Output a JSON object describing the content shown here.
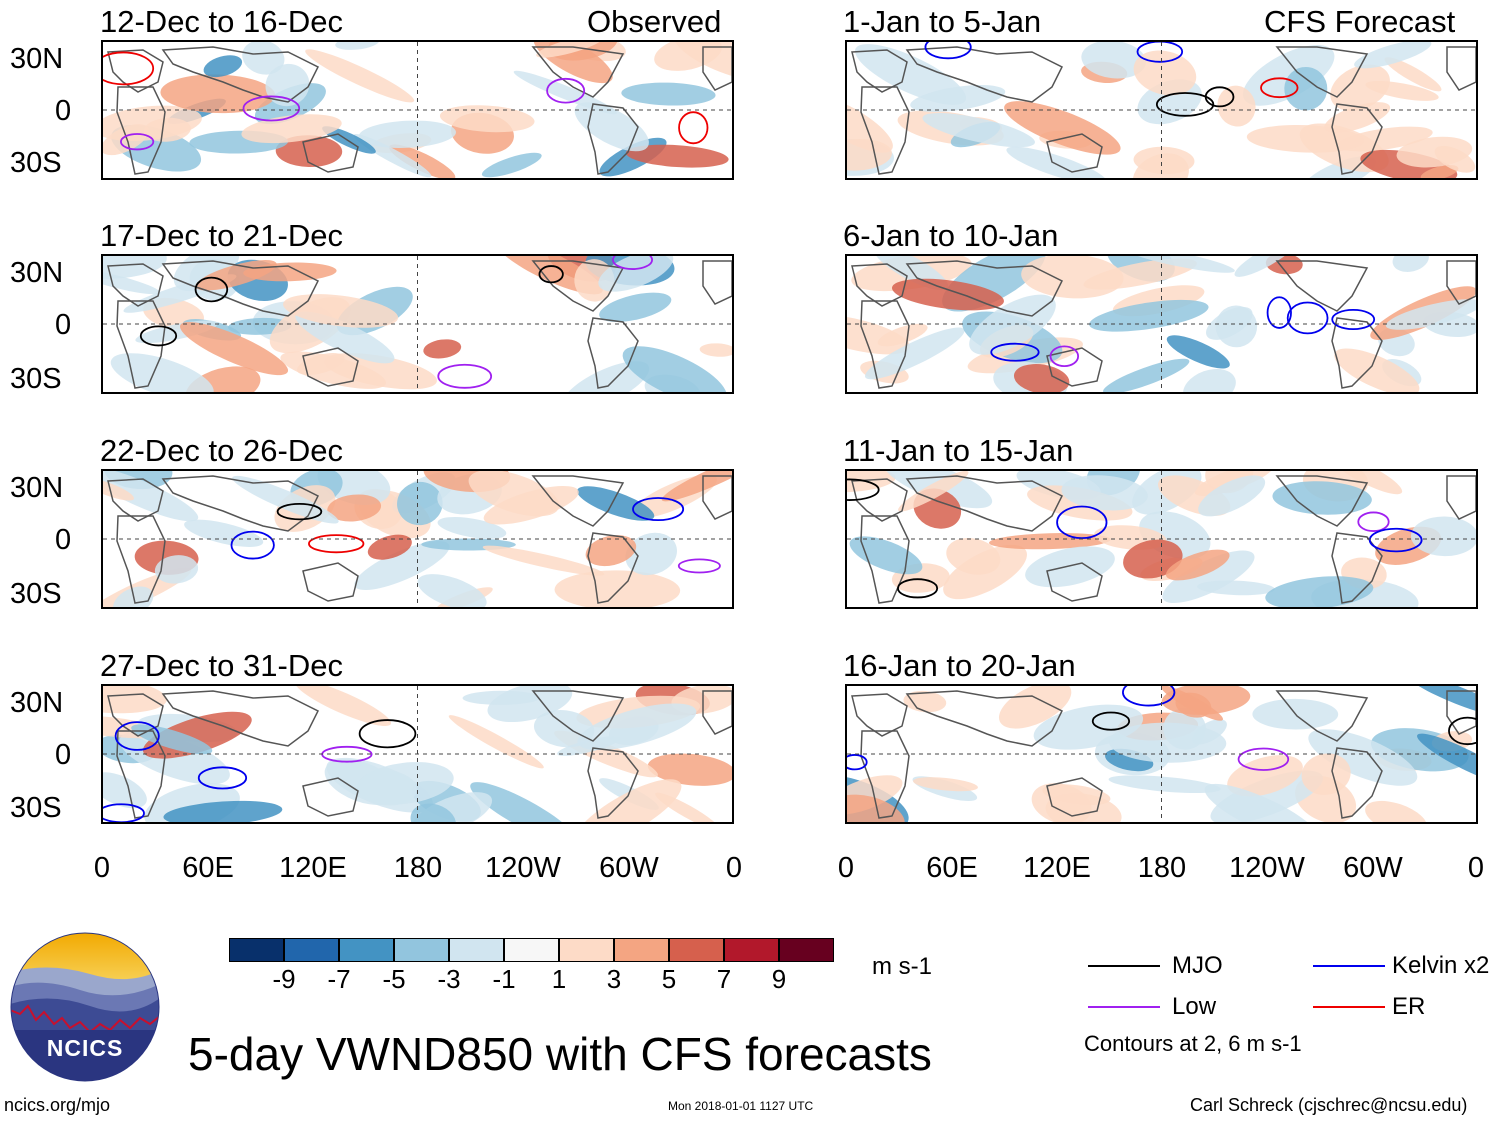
{
  "left_column": {
    "header_right": "Observed",
    "panels": [
      {
        "title": "12-Dec to 16-Dec"
      },
      {
        "title": "17-Dec to 21-Dec"
      },
      {
        "title": "22-Dec to 26-Dec"
      },
      {
        "title": "27-Dec to 31-Dec"
      }
    ]
  },
  "right_column": {
    "header_right": "CFS Forecast",
    "panels": [
      {
        "title": "1-Jan to 5-Jan"
      },
      {
        "title": "6-Jan to 10-Jan"
      },
      {
        "title": "11-Jan to 15-Jan"
      },
      {
        "title": "16-Jan to 20-Jan"
      }
    ]
  },
  "lat_labels": [
    "30N",
    "0",
    "30S"
  ],
  "lon_labels": [
    "0",
    "60E",
    "120E",
    "180",
    "120W",
    "60W",
    "0"
  ],
  "colorbar": {
    "colors": [
      "#08306b",
      "#2166ac",
      "#4393c3",
      "#92c5de",
      "#d1e5f0",
      "#f7f7f7",
      "#fddbc7",
      "#f4a582",
      "#d6604d",
      "#b2182b",
      "#67001f"
    ],
    "labels": [
      "-9",
      "-7",
      "-5",
      "-3",
      "-1",
      "1",
      "3",
      "5",
      "7",
      "9"
    ],
    "units": "m s-1"
  },
  "legend": {
    "items": [
      {
        "label": "MJO",
        "color": "#000000"
      },
      {
        "label": "Kelvin x2",
        "color": "#0000ee"
      },
      {
        "label": "Low",
        "color": "#a020f0"
      },
      {
        "label": "ER",
        "color": "#ee0000"
      }
    ],
    "note": "Contours at 2, 6 m s-1"
  },
  "logo": {
    "text": "NCICS"
  },
  "main_title": "5-day VWND850 with CFS forecasts",
  "footer": {
    "left": "ncics.org/mjo",
    "center": "Mon 2018-01-01 1127 UTC",
    "right": "Carl Schreck (cjschrec@ncsu.edu)"
  }
}
